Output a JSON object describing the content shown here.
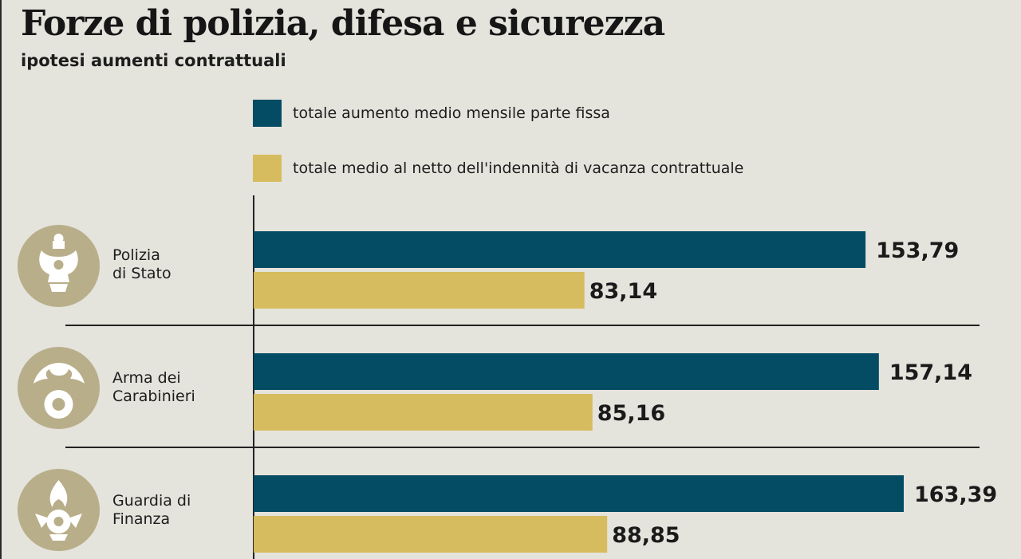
{
  "header": {
    "title": "Forze di polizia, difesa e sicurezza",
    "subtitle": "ipotesi aumenti contrattuali"
  },
  "colors": {
    "series1": "#044c63",
    "series2": "#d7bc5f",
    "emblem": "#b9ae8a",
    "emblem_glyph": "#ffffff"
  },
  "chart_data": {
    "type": "bar",
    "orientation": "horizontal",
    "categories": [
      "Polizia di Stato",
      "Arma dei Carabinieri",
      "Guardia di Finanza"
    ],
    "category_lines": [
      [
        "Polizia",
        "di Stato"
      ],
      [
        "Arma dei",
        "Carabinieri"
      ],
      [
        "Guardia di",
        "Finanza"
      ]
    ],
    "category_icons": [
      "polizia-emblem-icon",
      "carabinieri-emblem-icon",
      "finanza-emblem-icon"
    ],
    "series": [
      {
        "name": "totale aumento medio mensile parte fissa",
        "values": [
          153.79,
          157.14,
          163.39
        ],
        "labels": [
          "153,79",
          "157,14",
          "163,39"
        ]
      },
      {
        "name": "totale medio al netto dell'indennità di vacanza contrattuale",
        "values": [
          83.14,
          85.16,
          88.85
        ],
        "labels": [
          "83,14",
          "85,16",
          "88,85"
        ]
      }
    ],
    "xlim": [
      0,
      163.39
    ],
    "grid": false,
    "legend_position": "top"
  }
}
